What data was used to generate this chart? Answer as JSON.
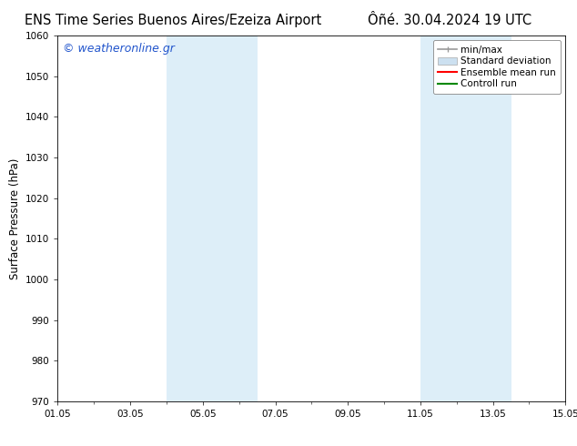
{
  "title_left": "ENS Time Series Buenos Aires/Ezeiza Airport",
  "title_right": "Ôñé. 30.04.2024 19 UTC",
  "ylabel": "Surface Pressure (hPa)",
  "xlabel_ticks": [
    "01.05",
    "03.05",
    "05.05",
    "07.05",
    "09.05",
    "11.05",
    "13.05",
    "15.05"
  ],
  "ylim": [
    970,
    1060
  ],
  "yticks": [
    970,
    980,
    990,
    1000,
    1010,
    1020,
    1030,
    1040,
    1050,
    1060
  ],
  "xlim": [
    0,
    14
  ],
  "xtick_positions": [
    0,
    2,
    4,
    6,
    8,
    10,
    12,
    14
  ],
  "shade_regions": [
    {
      "xmin": 3.0,
      "xmax": 5.5
    },
    {
      "xmin": 10.0,
      "xmax": 12.5
    }
  ],
  "shade_color": "#ddeef8",
  "background_color": "#ffffff",
  "watermark_text": "© weatheronline.gr",
  "watermark_color": "#2255cc",
  "legend_items": [
    {
      "label": "min/max",
      "color": "#999999",
      "linestyle": "-",
      "linewidth": 1.2
    },
    {
      "label": "Standard deviation",
      "color": "#cce0f0",
      "linestyle": "-",
      "linewidth": 6
    },
    {
      "label": "Ensemble mean run",
      "color": "#ff0000",
      "linestyle": "-",
      "linewidth": 1.5
    },
    {
      "label": "Controll run",
      "color": "#008800",
      "linestyle": "-",
      "linewidth": 1.5
    }
  ],
  "title_fontsize": 10.5,
  "axis_label_fontsize": 8.5,
  "tick_fontsize": 7.5,
  "legend_fontsize": 7.5,
  "watermark_fontsize": 9
}
